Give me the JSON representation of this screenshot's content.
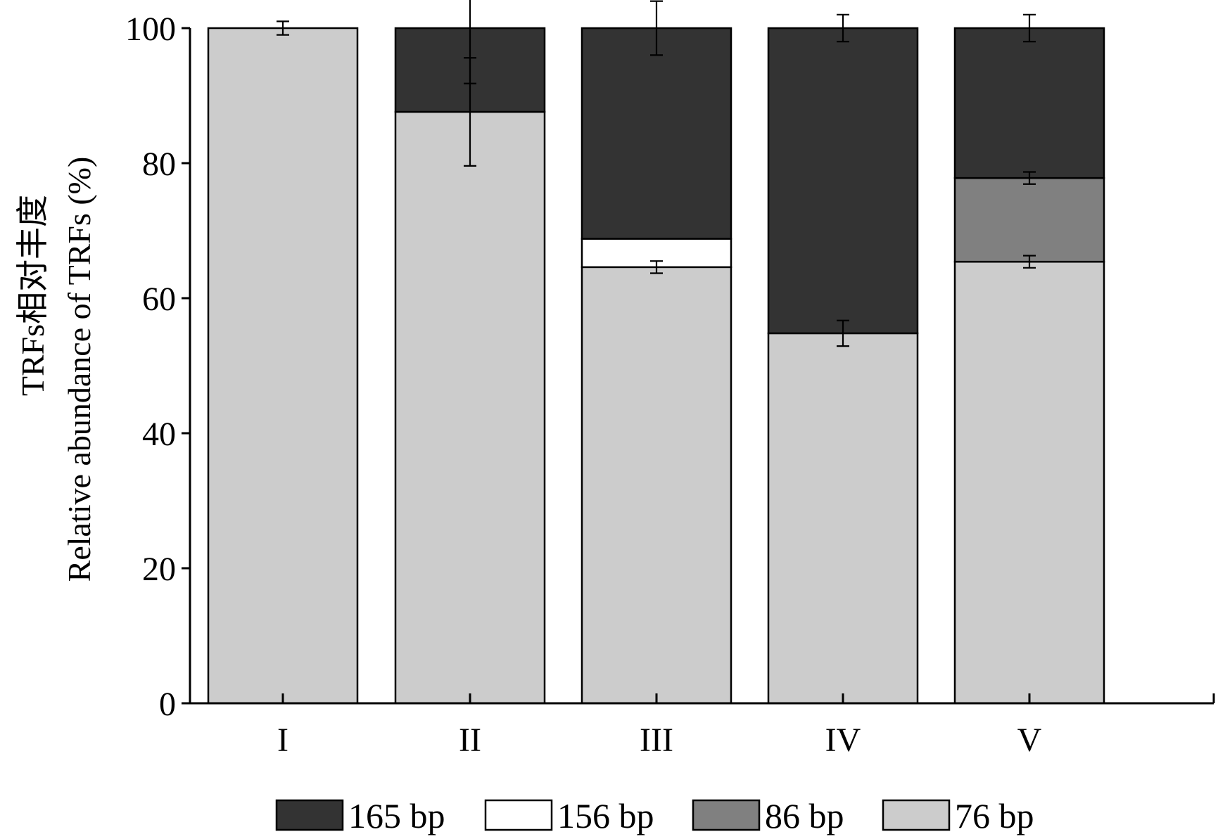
{
  "chart_data": {
    "type": "bar",
    "stacked": true,
    "title": "",
    "xlabel": "",
    "ylabel_lines": [
      "TRFs相对丰度",
      "Relative abundance of TRFs (%)"
    ],
    "ylim": [
      0,
      100
    ],
    "yticks": [
      0,
      20,
      40,
      60,
      80,
      100
    ],
    "categories": [
      "I",
      "II",
      "III",
      "IV",
      "V"
    ],
    "series": [
      {
        "name": "76 bp",
        "color": "#cccccc",
        "values": [
          100,
          87.6,
          64.6,
          54.8,
          65.4
        ],
        "errors": [
          1,
          8,
          0.9,
          1.9,
          0.9
        ],
        "error_at": [
          100,
          87.6,
          64.6,
          54.8,
          65.4
        ]
      },
      {
        "name": "86 bp",
        "color": "#808080",
        "values": [
          0,
          0,
          0,
          0,
          12.4
        ],
        "errors": [
          null,
          null,
          null,
          null,
          0.9
        ],
        "error_at": [
          null,
          null,
          null,
          null,
          77.8
        ]
      },
      {
        "name": "156 bp",
        "color": "#ffffff",
        "values": [
          0,
          0,
          4.2,
          0,
          0
        ],
        "errors": [
          null,
          null,
          null,
          null,
          null
        ],
        "error_at": [
          null,
          null,
          null,
          null,
          null
        ]
      },
      {
        "name": "165 bp",
        "color": "#333333",
        "values": [
          0,
          12.4,
          31.2,
          45.2,
          22.2
        ],
        "errors": [
          null,
          8.2,
          4,
          2,
          2
        ],
        "error_at": [
          null,
          100,
          100,
          100,
          100
        ]
      }
    ],
    "legend": {
      "placement": "bottom",
      "order": [
        "165 bp",
        "156 bp",
        "86 bp",
        "76 bp"
      ]
    }
  }
}
